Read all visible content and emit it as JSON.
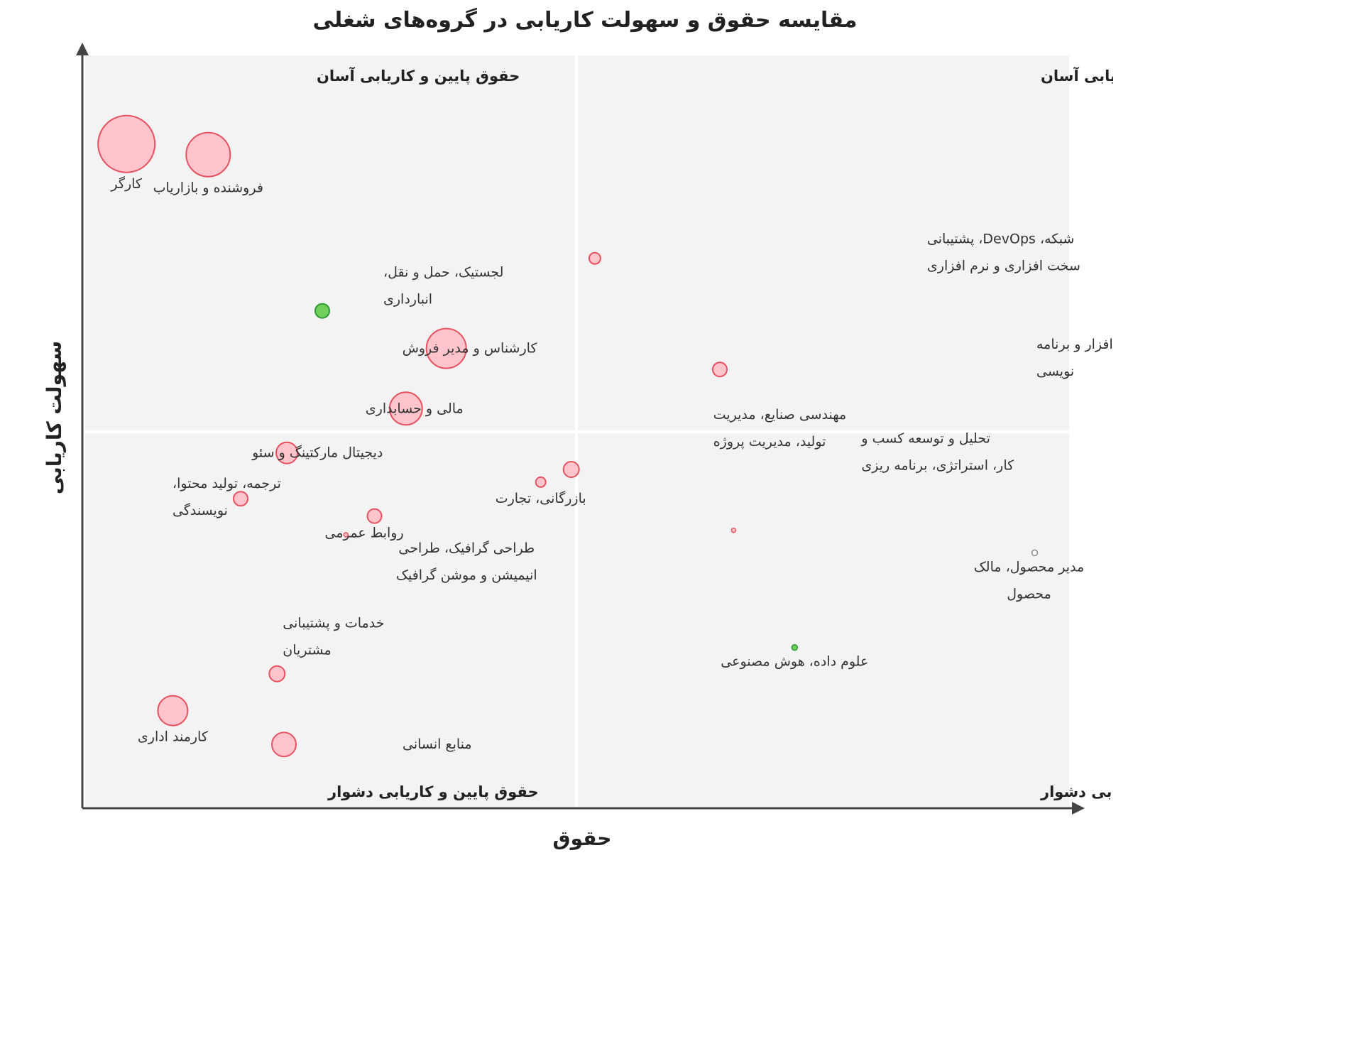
{
  "chart_data": {
    "type": "scatter",
    "title": "مقایسه حقوق و سهولت کاریابی در گروه‌های شغلی",
    "xlabel": "حقوق",
    "ylabel": "سهولت کاریابی",
    "xlim": [
      0,
      100
    ],
    "ylim": [
      0,
      100
    ],
    "grid": false,
    "quadrants": {
      "top_left": "حقوق پایین و کاریابی آسان",
      "top_right": "حقوق بالا و کاریابی آسان",
      "bottom_left": "حقوق پایین و کاریابی دشوار",
      "bottom_right": "حقوق بالا و کاریابی دشوار"
    },
    "colors": {
      "bubble_fill": "#ffc4cc",
      "bubble_stroke": "#e8515f",
      "green_fill": "#6fcf5a",
      "green_stroke": "#2e9a33",
      "gray_stroke": "#888888",
      "quadrant_bg": "#f3f3f3"
    },
    "points": [
      {
        "name": "کارگر",
        "lines": [
          "کارگر"
        ],
        "x": 4.2,
        "y": 88.2,
        "size": 40,
        "color": "pink",
        "labelSide": "below"
      },
      {
        "name": "فروشنده و بازاریاب",
        "lines": [
          "فروشنده و بازاریاب"
        ],
        "x": 12.5,
        "y": 86.8,
        "size": 31,
        "color": "pink",
        "labelSide": "below"
      },
      {
        "name": "لجستیک، حمل و نقل، انبارداری",
        "lines": [
          "لجستیک، حمل و نقل،",
          "انبارداری"
        ],
        "x": 24.1,
        "y": 66.0,
        "size": 10,
        "color": "green",
        "labelSide": "above"
      },
      {
        "name": "شبکه، DevOps، پشتیبانی سخت افزاری و نرم افزاری",
        "lines": [
          "شبکه، DevOps، پشتیبانی",
          "سخت افزاری و نرم افزاری"
        ],
        "x": 51.8,
        "y": 73.0,
        "size": 8,
        "color": "pink",
        "labelSide": "right"
      },
      {
        "name": "کارشناس و مدیر فروش",
        "lines": [
          "کارشناس و مدیر فروش"
        ],
        "x": 36.7,
        "y": 61.0,
        "size": 28,
        "color": "pink",
        "labelSide": "left"
      },
      {
        "name": "توسعه نرم افزار و برنامه نویسی",
        "lines": [
          "توسعه نرم افزار و برنامه",
          "نویسی"
        ],
        "x": 64.5,
        "y": 58.2,
        "size": 10,
        "color": "pink",
        "labelSide": "right"
      },
      {
        "name": "مالی و حسابداری",
        "lines": [
          "مالی و حسابداری"
        ],
        "x": 32.6,
        "y": 53.0,
        "size": 23,
        "color": "pink",
        "labelSide": "left"
      },
      {
        "name": "دیجیتال مارکتینگ و سئو",
        "lines": [
          "دیجیتال مارکتینگ و سئو"
        ],
        "x": 20.5,
        "y": 47.1,
        "size": 15,
        "color": "pink",
        "labelSide": "left"
      },
      {
        "name": "مهندسی صنایع، مدیریت تولید، مدیریت پروژه",
        "lines": [
          "مهندسی صنایع، مدیریت",
          "تولید، مدیریت پروژه"
        ],
        "x": 49.4,
        "y": 44.9,
        "size": 11,
        "color": "pink",
        "labelSide": "above"
      },
      {
        "name": "بازرگانی، تجارت",
        "lines": [
          "بازرگانی، تجارت"
        ],
        "x": 46.3,
        "y": 43.2,
        "size": 7,
        "color": "pink",
        "labelSide": "below"
      },
      {
        "name": "ترجمه، تولید محتوا، نویسندگی",
        "lines": [
          "ترجمه، تولید محتوا،",
          "نویسندگی"
        ],
        "x": 15.8,
        "y": 41.0,
        "size": 10,
        "color": "pink",
        "labelSide": "left"
      },
      {
        "name": "روابط عمومی",
        "lines": [
          "روابط عمومی"
        ],
        "x": 29.4,
        "y": 38.7,
        "size": 10,
        "color": "pink",
        "labelSide": "belowleft"
      },
      {
        "name": "تحلیل و توسعه کسب و کار، استراتژی، برنامه ریزی",
        "lines": [
          "تحلیل و توسعه کسب و",
          "کار، استراتژی، برنامه ریزی"
        ],
        "x": 65.9,
        "y": 36.8,
        "size": 3,
        "color": "pink",
        "labelSide": "above"
      },
      {
        "name": "طراحی گرافیک، طراحی انیمیشن و موشن گرافیک",
        "lines": [
          "طراحی گرافیک، طراحی",
          "انیمیشن و موشن گرافیک"
        ],
        "x": 26.5,
        "y": 36.2,
        "size": 3,
        "color": "pink",
        "labelSide": "below"
      },
      {
        "name": "مدیر محصول، مالک محصول",
        "lines": [
          "مدیر محصول، مالک",
          "محصول"
        ],
        "x": 96.5,
        "y": 33.8,
        "size": 4,
        "color": "gray",
        "labelSide": "below"
      },
      {
        "name": "علوم داده، هوش مصنوعی",
        "lines": [
          "علوم داده، هوش مصنوعی"
        ],
        "x": 72.1,
        "y": 21.2,
        "size": 4,
        "color": "green",
        "labelSide": "below"
      },
      {
        "name": "خدمات و پشتیبانی مشتریان",
        "lines": [
          "خدمات و پشتیبانی",
          "مشتریان"
        ],
        "x": 19.5,
        "y": 17.7,
        "size": 11,
        "color": "pink",
        "labelSide": "above"
      },
      {
        "name": "کارمند اداری",
        "lines": [
          "کارمند اداری"
        ],
        "x": 8.9,
        "y": 12.8,
        "size": 21,
        "color": "pink",
        "labelSide": "below"
      },
      {
        "name": "منابع انسانی",
        "lines": [
          "منابع انسانی"
        ],
        "x": 20.2,
        "y": 8.3,
        "size": 17,
        "color": "pink",
        "labelSide": "right"
      }
    ]
  }
}
